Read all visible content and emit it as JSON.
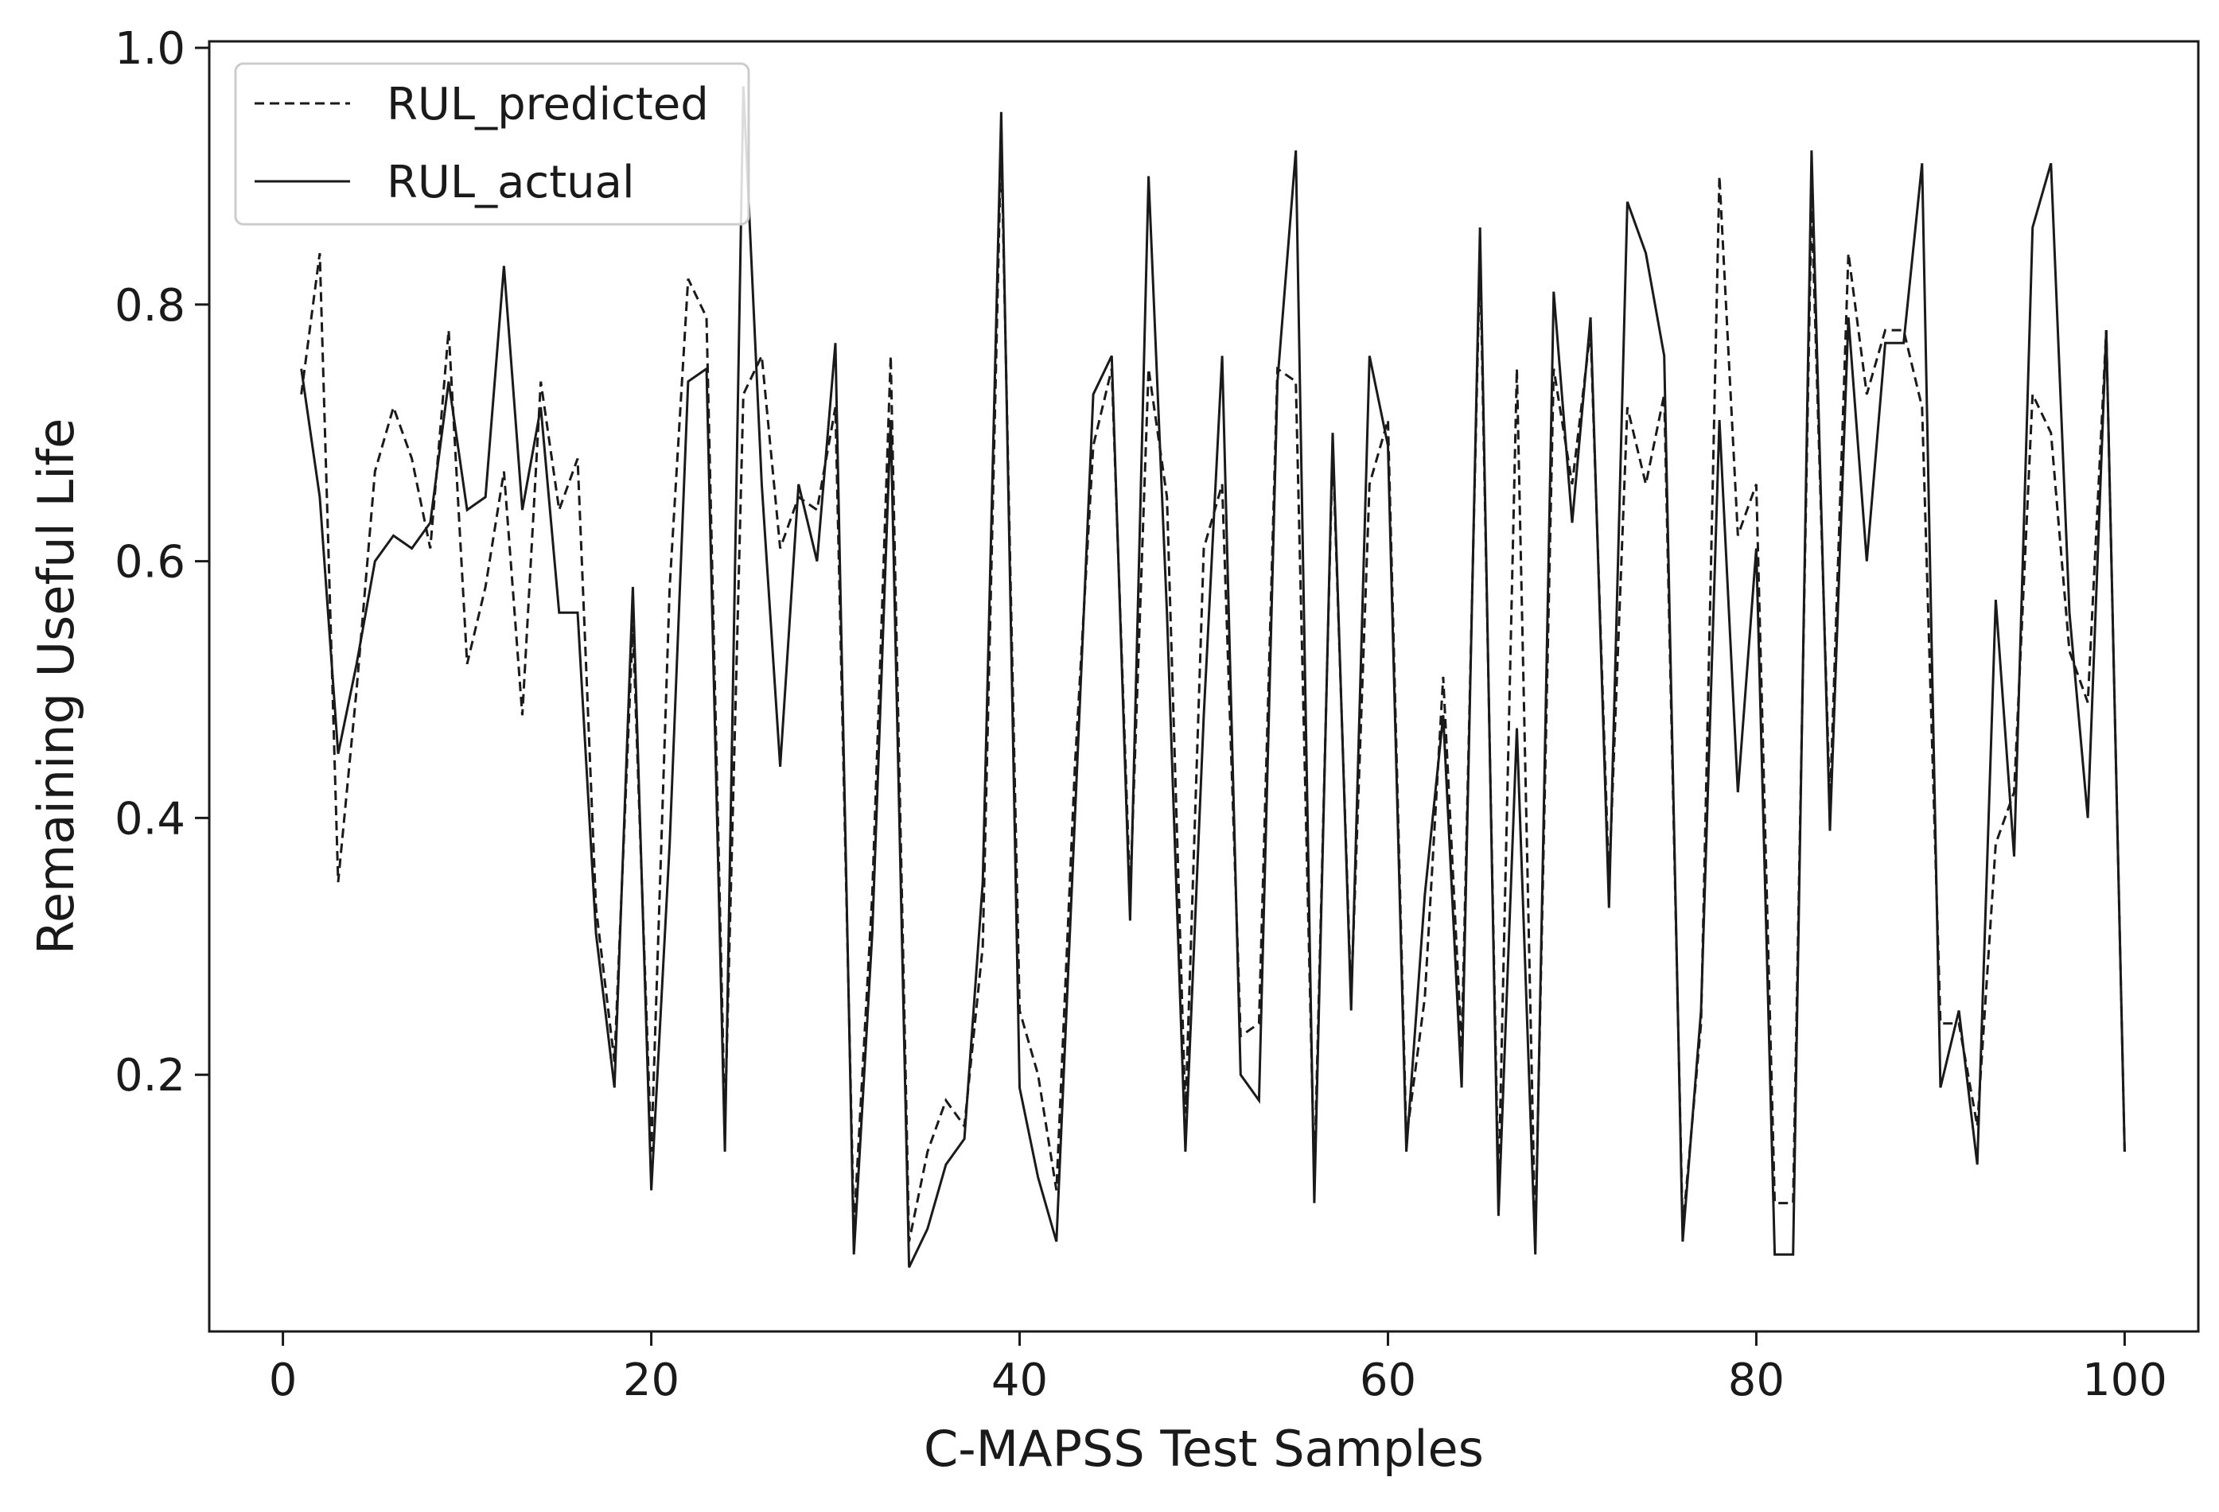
{
  "chart_data": {
    "type": "line",
    "title": "",
    "xlabel": "C-MAPSS Test Samples",
    "ylabel": "Remaining Useful Life",
    "xlim": [
      -4,
      104
    ],
    "ylim": [
      0.0,
      1.005
    ],
    "xticks": [
      0,
      20,
      40,
      60,
      80,
      100
    ],
    "xtick_labels": [
      "0",
      "20",
      "40",
      "60",
      "80",
      "100"
    ],
    "yticks": [
      0.2,
      0.4,
      0.6,
      0.8,
      1.0
    ],
    "ytick_labels": [
      "0.2",
      "0.4",
      "0.6",
      "0.8",
      "1.0"
    ],
    "grid": false,
    "legend": {
      "position": "top-left"
    },
    "x": [
      1,
      2,
      3,
      4,
      5,
      6,
      7,
      8,
      9,
      10,
      11,
      12,
      13,
      14,
      15,
      16,
      17,
      18,
      19,
      20,
      21,
      22,
      23,
      24,
      25,
      26,
      27,
      28,
      29,
      30,
      31,
      32,
      33,
      34,
      35,
      36,
      37,
      38,
      39,
      40,
      41,
      42,
      43,
      44,
      45,
      46,
      47,
      48,
      49,
      50,
      51,
      52,
      53,
      54,
      55,
      56,
      57,
      58,
      59,
      60,
      61,
      62,
      63,
      64,
      65,
      66,
      67,
      68,
      69,
      70,
      71,
      72,
      73,
      74,
      75,
      76,
      77,
      78,
      79,
      80,
      81,
      82,
      83,
      84,
      85,
      86,
      87,
      88,
      89,
      90,
      91,
      92,
      93,
      94,
      95,
      96,
      97,
      98,
      99,
      100
    ],
    "series": [
      {
        "name": "RUL_predicted",
        "style": "dashed",
        "color": "#1a1a1a",
        "values": [
          0.73,
          0.84,
          0.35,
          0.5,
          0.67,
          0.72,
          0.68,
          0.61,
          0.78,
          0.52,
          0.58,
          0.67,
          0.48,
          0.74,
          0.64,
          0.68,
          0.33,
          0.21,
          0.55,
          0.14,
          0.58,
          0.82,
          0.79,
          0.16,
          0.73,
          0.76,
          0.61,
          0.65,
          0.64,
          0.72,
          0.08,
          0.34,
          0.76,
          0.07,
          0.14,
          0.18,
          0.16,
          0.3,
          0.93,
          0.25,
          0.2,
          0.11,
          0.44,
          0.69,
          0.75,
          0.34,
          0.75,
          0.65,
          0.17,
          0.61,
          0.66,
          0.23,
          0.24,
          0.75,
          0.74,
          0.12,
          0.69,
          0.26,
          0.66,
          0.71,
          0.15,
          0.26,
          0.51,
          0.22,
          0.84,
          0.11,
          0.75,
          0.07,
          0.75,
          0.66,
          0.78,
          0.35,
          0.72,
          0.66,
          0.73,
          0.08,
          0.24,
          0.9,
          0.62,
          0.66,
          0.1,
          0.1,
          0.88,
          0.41,
          0.84,
          0.73,
          0.78,
          0.78,
          0.72,
          0.24,
          0.24,
          0.16,
          0.38,
          0.42,
          0.73,
          0.7,
          0.53,
          0.49,
          0.78,
          0.14
        ]
      },
      {
        "name": "RUL_actual",
        "style": "solid",
        "color": "#1a1a1a",
        "values": [
          0.75,
          0.65,
          0.45,
          0.52,
          0.6,
          0.62,
          0.61,
          0.63,
          0.74,
          0.64,
          0.65,
          0.83,
          0.64,
          0.72,
          0.56,
          0.56,
          0.31,
          0.19,
          0.58,
          0.11,
          0.38,
          0.74,
          0.75,
          0.14,
          0.97,
          0.66,
          0.44,
          0.66,
          0.6,
          0.77,
          0.06,
          0.31,
          0.71,
          0.05,
          0.08,
          0.13,
          0.15,
          0.35,
          0.95,
          0.19,
          0.12,
          0.07,
          0.4,
          0.73,
          0.76,
          0.32,
          0.9,
          0.56,
          0.14,
          0.48,
          0.76,
          0.2,
          0.18,
          0.74,
          0.92,
          0.1,
          0.7,
          0.25,
          0.76,
          0.69,
          0.14,
          0.34,
          0.48,
          0.19,
          0.86,
          0.09,
          0.47,
          0.06,
          0.81,
          0.63,
          0.79,
          0.33,
          0.88,
          0.84,
          0.76,
          0.07,
          0.25,
          0.71,
          0.42,
          0.61,
          0.06,
          0.06,
          0.92,
          0.39,
          0.79,
          0.6,
          0.77,
          0.77,
          0.91,
          0.19,
          0.25,
          0.13,
          0.57,
          0.37,
          0.86,
          0.91,
          0.56,
          0.4,
          0.78,
          0.14
        ]
      }
    ]
  }
}
